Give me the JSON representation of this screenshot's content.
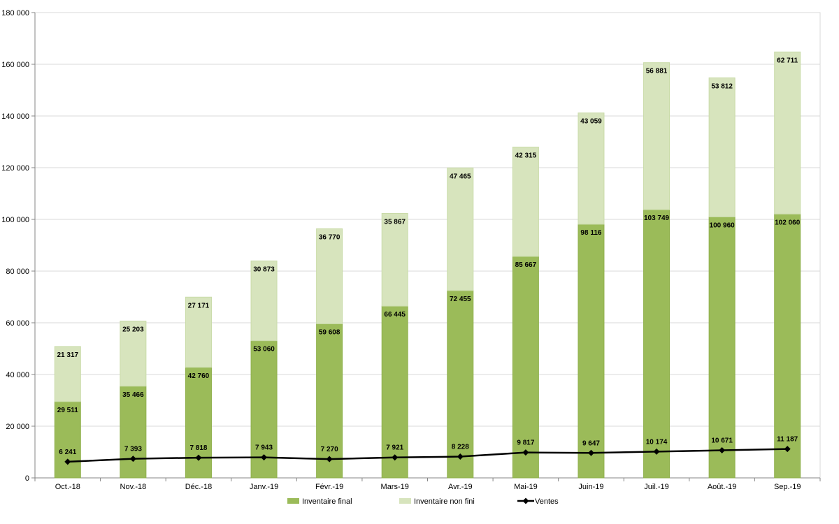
{
  "chart_data": {
    "type": "bar",
    "stacked": true,
    "categories": [
      "Oct.-18",
      "Nov.-18",
      "Déc.-18",
      "Janv.-19",
      "Févr.-19",
      "Mars-19",
      "Avr.-19",
      "Mai-19",
      "Juin-19",
      "Juil.-19",
      "Août.-19",
      "Sep.-19"
    ],
    "series": [
      {
        "name": "Inventaire final",
        "kind": "bar",
        "color": "#9bbb59",
        "values": [
          29511,
          35466,
          42760,
          53060,
          59608,
          66445,
          72455,
          85667,
          98116,
          103749,
          100960,
          102060
        ],
        "labels": [
          "29 511",
          "35 466",
          "42 760",
          "53 060",
          "59 608",
          "66 445",
          "72 455",
          "85 667",
          "98 116",
          "103 749",
          "100 960",
          "102 060"
        ]
      },
      {
        "name": "Inventaire non fini",
        "kind": "bar",
        "color": "#d7e4bd",
        "values": [
          21317,
          25203,
          27171,
          30873,
          36770,
          35867,
          47465,
          42315,
          43059,
          56881,
          53812,
          62711
        ],
        "labels": [
          "21 317",
          "25 203",
          "27 171",
          "30 873",
          "36 770",
          "35 867",
          "47 465",
          "42 315",
          "43 059",
          "56 881",
          "53 812",
          "62 711"
        ]
      },
      {
        "name": "Ventes",
        "kind": "line",
        "color": "#000000",
        "marker": "diamond",
        "values": [
          6241,
          7393,
          7818,
          7943,
          7270,
          7921,
          8228,
          9817,
          9647,
          10174,
          10671,
          11187
        ],
        "labels": [
          "6 241",
          "7 393",
          "7 818",
          "7 943",
          "7 270",
          "7 921",
          "8 228",
          "9 817",
          "9 647",
          "10 174",
          "10 671",
          "11 187"
        ]
      }
    ],
    "ylim": [
      0,
      180000
    ],
    "yticks": [
      0,
      20000,
      40000,
      60000,
      80000,
      100000,
      120000,
      140000,
      160000,
      180000
    ],
    "ytick_labels": [
      "0",
      "20 000",
      "40 000",
      "60 000",
      "80 000",
      "100 000",
      "120 000",
      "140 000",
      "160 000",
      "180 000"
    ],
    "grid": true,
    "legend_position": "bottom",
    "title": "",
    "xlabel": "",
    "ylabel": ""
  }
}
